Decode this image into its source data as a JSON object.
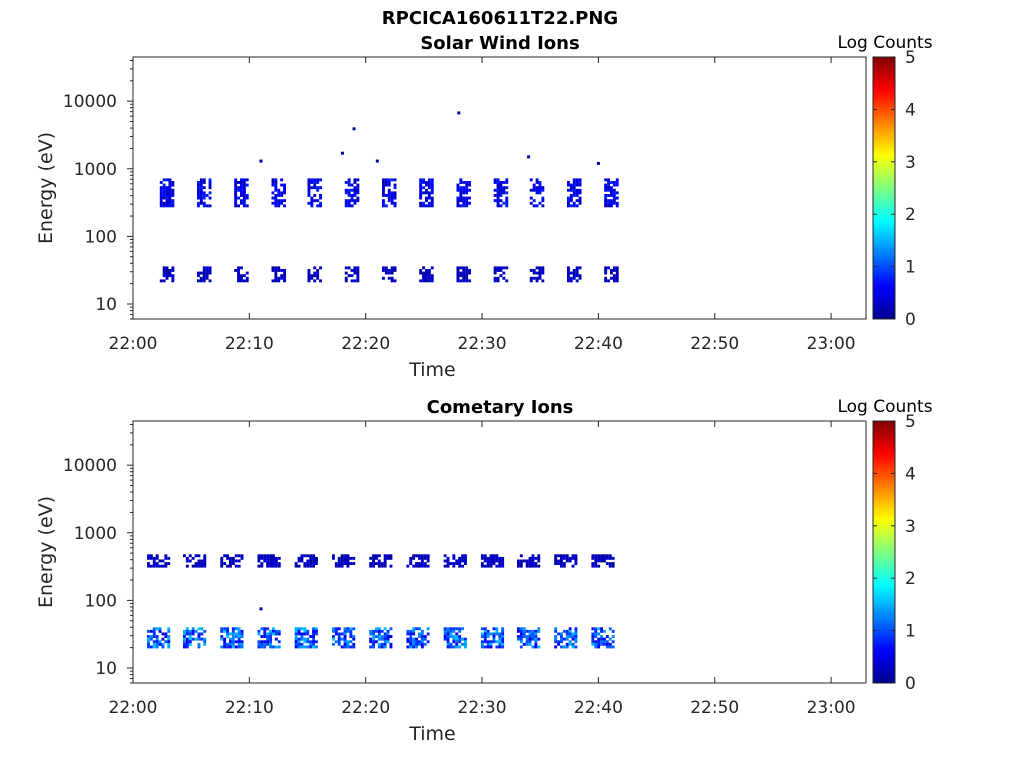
{
  "figure_title": "RPCICA160611T22.PNG",
  "chart_data": [
    {
      "type": "heatmap",
      "title": "Solar Wind Ions",
      "xlabel": "Time",
      "ylabel": "Energy (eV)",
      "x_ticks": [
        "22:00",
        "22:10",
        "22:20",
        "22:30",
        "22:40",
        "22:50",
        "23:00"
      ],
      "xlim": [
        "22:00",
        "23:03"
      ],
      "y_scale": "log",
      "y_ticks": [
        10,
        100,
        1000,
        10000
      ],
      "y_tick_labels": [
        "10",
        "100",
        "1000",
        "10000"
      ],
      "ylim": [
        6,
        45000
      ],
      "colorbar": {
        "label": "Log Counts",
        "range": [
          0,
          5
        ],
        "ticks": [
          "0",
          "1",
          "2",
          "3",
          "4",
          "5"
        ]
      },
      "sweeps_start_minutes": [
        2.3,
        5.5,
        8.7,
        11.9,
        15.0,
        18.2,
        21.4,
        24.6,
        27.8,
        31.0,
        34.1,
        37.3,
        40.5
      ],
      "sweep_duration_minutes": 1.1,
      "bands": [
        {
          "energy_range": [
            280,
            720
          ],
          "level": [
            0.2,
            0.8
          ]
        },
        {
          "energy_range": [
            22,
            36
          ],
          "level": [
            0.1,
            0.4
          ]
        }
      ],
      "isolated_points": [
        {
          "time": "22:28",
          "energy": 6700
        },
        {
          "time": "22:19",
          "energy": 3900
        },
        {
          "time": "22:18",
          "energy": 1700
        },
        {
          "time": "22:21",
          "energy": 1300
        },
        {
          "time": "22:11",
          "energy": 1300
        },
        {
          "time": "22:34",
          "energy": 1500
        },
        {
          "time": "22:40",
          "energy": 1200
        }
      ]
    },
    {
      "type": "heatmap",
      "title": "Cometary Ions",
      "xlabel": "Time",
      "ylabel": "Energy (eV)",
      "x_ticks": [
        "22:00",
        "22:10",
        "22:20",
        "22:30",
        "22:40",
        "22:50",
        "23:00"
      ],
      "xlim": [
        "22:00",
        "23:03"
      ],
      "y_scale": "log",
      "y_ticks": [
        10,
        100,
        1000,
        10000
      ],
      "y_tick_labels": [
        "10",
        "100",
        "1000",
        "10000"
      ],
      "ylim": [
        6,
        45000
      ],
      "colorbar": {
        "label": "Log Counts",
        "range": [
          0,
          5
        ],
        "ticks": [
          "0",
          "1",
          "2",
          "3",
          "4",
          "5"
        ]
      },
      "sweeps_start_minutes": [
        1.2,
        4.3,
        7.5,
        10.7,
        13.9,
        17.1,
        20.3,
        23.5,
        26.7,
        29.9,
        33.0,
        36.2,
        39.4
      ],
      "sweep_duration_minutes": 1.9,
      "bands": [
        {
          "energy_range": [
            330,
            480
          ],
          "level": [
            0.1,
            0.4
          ]
        },
        {
          "energy_range": [
            20,
            40
          ],
          "level": [
            0.5,
            1.6
          ]
        }
      ],
      "isolated_points": [
        {
          "time": "22:11",
          "energy": 75
        }
      ]
    }
  ]
}
